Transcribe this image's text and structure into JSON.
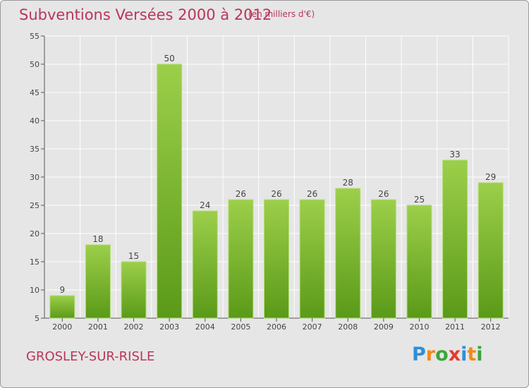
{
  "header": {
    "title": "Subventions Versées 2000 à 2012",
    "subtitle": "(en milliers d'€)"
  },
  "footer": {
    "commune": "GROSLEY-SUR-RISLE",
    "logo_letters": [
      "P",
      "r",
      "o",
      "x",
      "i",
      "t",
      "i"
    ],
    "logo_colors": [
      "#2e8fd8",
      "#f08a1e",
      "#3aa63a",
      "#e23b2e",
      "#2e8fd8",
      "#f08a1e",
      "#3aa63a"
    ]
  },
  "colors": {
    "title": "#b8365a",
    "bar_light": "#9ccf4a",
    "bar_dark": "#5a9a18",
    "grid": "#ffffff",
    "background": "#e6e6e6"
  },
  "chart_data": {
    "type": "bar",
    "categories": [
      "2000",
      "2001",
      "2002",
      "2003",
      "2004",
      "2005",
      "2006",
      "2007",
      "2008",
      "2009",
      "2010",
      "2011",
      "2012"
    ],
    "values": [
      9,
      18,
      15,
      50,
      24,
      26,
      26,
      26,
      28,
      26,
      25,
      33,
      29
    ],
    "ylim": [
      5,
      55
    ],
    "yticks": [
      "5",
      "10",
      "15",
      "20",
      "25",
      "30",
      "35",
      "40",
      "45",
      "50",
      "55"
    ],
    "grid": true,
    "title": "Subventions Versées 2000 à 2012",
    "xlabel": "",
    "ylabel": ""
  }
}
